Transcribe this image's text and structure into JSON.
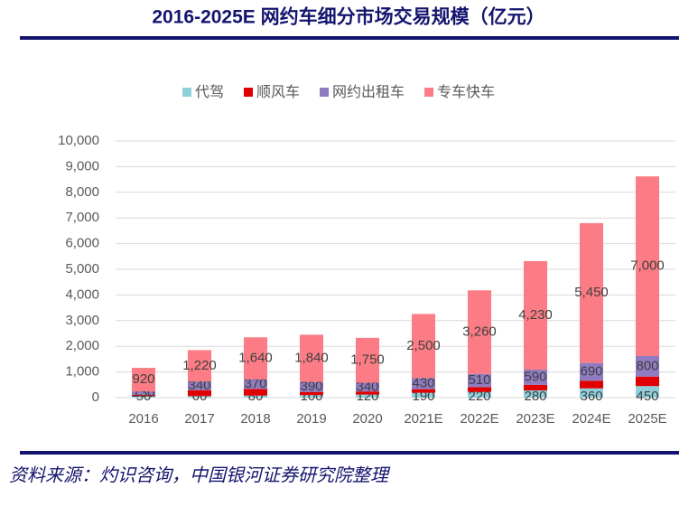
{
  "chart_data": {
    "type": "stacked-bar",
    "title": "2016-2025E 网约车细分市场交易规模（亿元）",
    "source": "资料来源：灼识咨询，中国银河证券研究院整理",
    "categories": [
      "2016",
      "2017",
      "2018",
      "2019",
      "2020",
      "2021E",
      "2022E",
      "2023E",
      "2024E",
      "2025E"
    ],
    "series": [
      {
        "name": "代驾",
        "color": "#8ecfdc",
        "values": [
          50,
          60,
          80,
          100,
          120,
          190,
          220,
          280,
          360,
          450
        ]
      },
      {
        "name": "顺风车",
        "color": "#e00000",
        "values": [
          60,
          230,
          260,
          120,
          120,
          140,
          190,
          220,
          300,
          370
        ]
      },
      {
        "name": "网约出租车",
        "color": "#8f7bbf",
        "values": [
          130,
          340,
          370,
          390,
          340,
          430,
          510,
          590,
          690,
          800
        ]
      },
      {
        "name": "专车快车",
        "color": "#fb7c84",
        "values": [
          920,
          1220,
          1640,
          1840,
          1750,
          2500,
          3260,
          4230,
          5450,
          7000
        ],
        "value_labels": [
          "920",
          "1,220",
          "1,640",
          "1,840",
          "1,750",
          "2,500",
          "3,260",
          "4,230",
          "5,450",
          "7,000"
        ]
      }
    ],
    "ylim": [
      0,
      10000
    ],
    "yticks": [
      0,
      {
        "value": 1000,
        "label": "1,000"
      },
      {
        "value": 2000,
        "label": "2,000"
      },
      {
        "value": 3000,
        "label": "3,000"
      },
      {
        "value": 4000,
        "label": "4,000"
      },
      {
        "value": 5000,
        "label": "5,000"
      },
      {
        "value": 6000,
        "label": "6,000"
      },
      {
        "value": 7000,
        "label": "7,000"
      },
      {
        "value": 8000,
        "label": "8,000"
      },
      {
        "value": 9000,
        "label": "9,000"
      },
      {
        "value": 10000,
        "label": "10,000"
      }
    ],
    "grid": true,
    "legend": "top"
  }
}
